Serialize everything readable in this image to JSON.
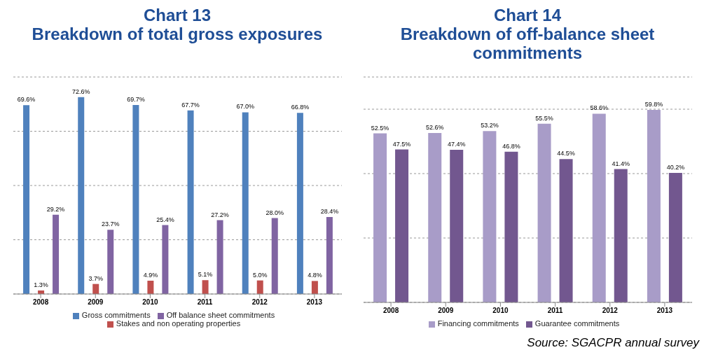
{
  "chart_data": [
    {
      "type": "bar",
      "title": "Chart 13\nBreakdown of total gross exposures",
      "categories": [
        "2008",
        "2009",
        "2010",
        "2011",
        "2012",
        "2013"
      ],
      "series": [
        {
          "name": "Gross commitments",
          "color": "#4f81bd",
          "values": [
            69.6,
            72.6,
            69.7,
            67.7,
            67.0,
            66.8
          ],
          "value_labels": [
            "69.6%",
            "72.6%",
            "69.7%",
            "67.7%",
            "67.0%",
            "66.8%"
          ]
        },
        {
          "name": "Stakes and non operating properties",
          "color": "#c0504d",
          "values": [
            1.3,
            3.7,
            4.9,
            5.1,
            5.0,
            4.8
          ],
          "value_labels": [
            "1.3%",
            "3.7%",
            "4.9%",
            "5.1%",
            "5.0%",
            "4.8%"
          ]
        },
        {
          "name": "Off balance sheet commitments",
          "color": "#8064a2",
          "values": [
            29.2,
            23.7,
            25.4,
            27.2,
            28.0,
            28.4
          ],
          "value_labels": [
            "29.2%",
            "23.7%",
            "25.4%",
            "27.2%",
            "28.0%",
            "28.4%"
          ]
        }
      ],
      "ylim": [
        0,
        80
      ],
      "tick_labels": "x",
      "grid": "y",
      "legend": "bottom"
    },
    {
      "type": "bar",
      "title": "Chart 14\nBreakdown of off-balance sheet commitments",
      "categories": [
        "2008",
        "2009",
        "2010",
        "2011",
        "2012",
        "2013"
      ],
      "series": [
        {
          "name": "Financing commitments",
          "color": "#a89cc8",
          "values": [
            52.5,
            52.6,
            53.2,
            55.5,
            58.6,
            59.8
          ],
          "value_labels": [
            "52.5%",
            "52.6%",
            "53.2%",
            "55.5%",
            "58.6%",
            "59.8%"
          ]
        },
        {
          "name": "Guarantee commitments",
          "color": "#72578f",
          "values": [
            47.5,
            47.4,
            46.8,
            44.5,
            41.4,
            40.2
          ],
          "value_labels": [
            "47.5%",
            "47.4%",
            "46.8%",
            "44.5%",
            "41.4%",
            "40.2%"
          ]
        }
      ],
      "ylim": [
        0,
        70
      ],
      "tick_labels": "x",
      "grid": "y",
      "legend": "bottom",
      "annotations": [
        "Source: SGACPR annual survey"
      ]
    }
  ]
}
